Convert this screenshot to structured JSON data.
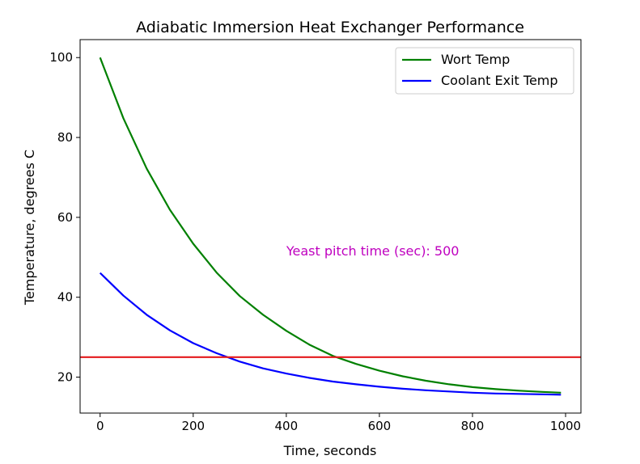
{
  "chart_data": {
    "type": "line",
    "title": "Adiabatic Immersion Heat Exchanger Performance",
    "xlabel": "Time, seconds",
    "ylabel": "Temperature, degrees C",
    "xlim": [
      -43,
      1033
    ],
    "ylim": [
      11,
      104.5
    ],
    "xticks": [
      0,
      200,
      400,
      600,
      800,
      1000
    ],
    "yticks": [
      20,
      40,
      60,
      80,
      100
    ],
    "grid": false,
    "legend_position": "top-right",
    "annotation": {
      "text": "Yeast pitch time (sec): 500",
      "x": 400,
      "y": 50.5,
      "color": "#bf00bf"
    },
    "hline": {
      "y": 25,
      "color": "#e41a1c"
    },
    "series": [
      {
        "name": "Wort Temp",
        "color": "#008000",
        "x": [
          0,
          50,
          100,
          150,
          200,
          250,
          300,
          350,
          400,
          450,
          500,
          550,
          600,
          650,
          700,
          750,
          800,
          850,
          900,
          950,
          990
        ],
        "y": [
          100,
          84.8,
          72.2,
          61.9,
          53.4,
          46.2,
          40.3,
          35.6,
          31.6,
          28.1,
          25.3,
          23.3,
          21.6,
          20.2,
          19.1,
          18.2,
          17.5,
          17.0,
          16.6,
          16.3,
          16.1
        ]
      },
      {
        "name": "Coolant Exit Temp",
        "color": "#0000ff",
        "x": [
          0,
          50,
          100,
          150,
          200,
          250,
          300,
          350,
          400,
          450,
          500,
          550,
          600,
          650,
          700,
          750,
          800,
          850,
          900,
          950,
          990
        ],
        "y": [
          46.1,
          40.4,
          35.6,
          31.7,
          28.5,
          26.0,
          23.9,
          22.2,
          20.9,
          19.8,
          18.9,
          18.2,
          17.6,
          17.1,
          16.7,
          16.4,
          16.1,
          15.9,
          15.8,
          15.7,
          15.6
        ]
      }
    ]
  }
}
